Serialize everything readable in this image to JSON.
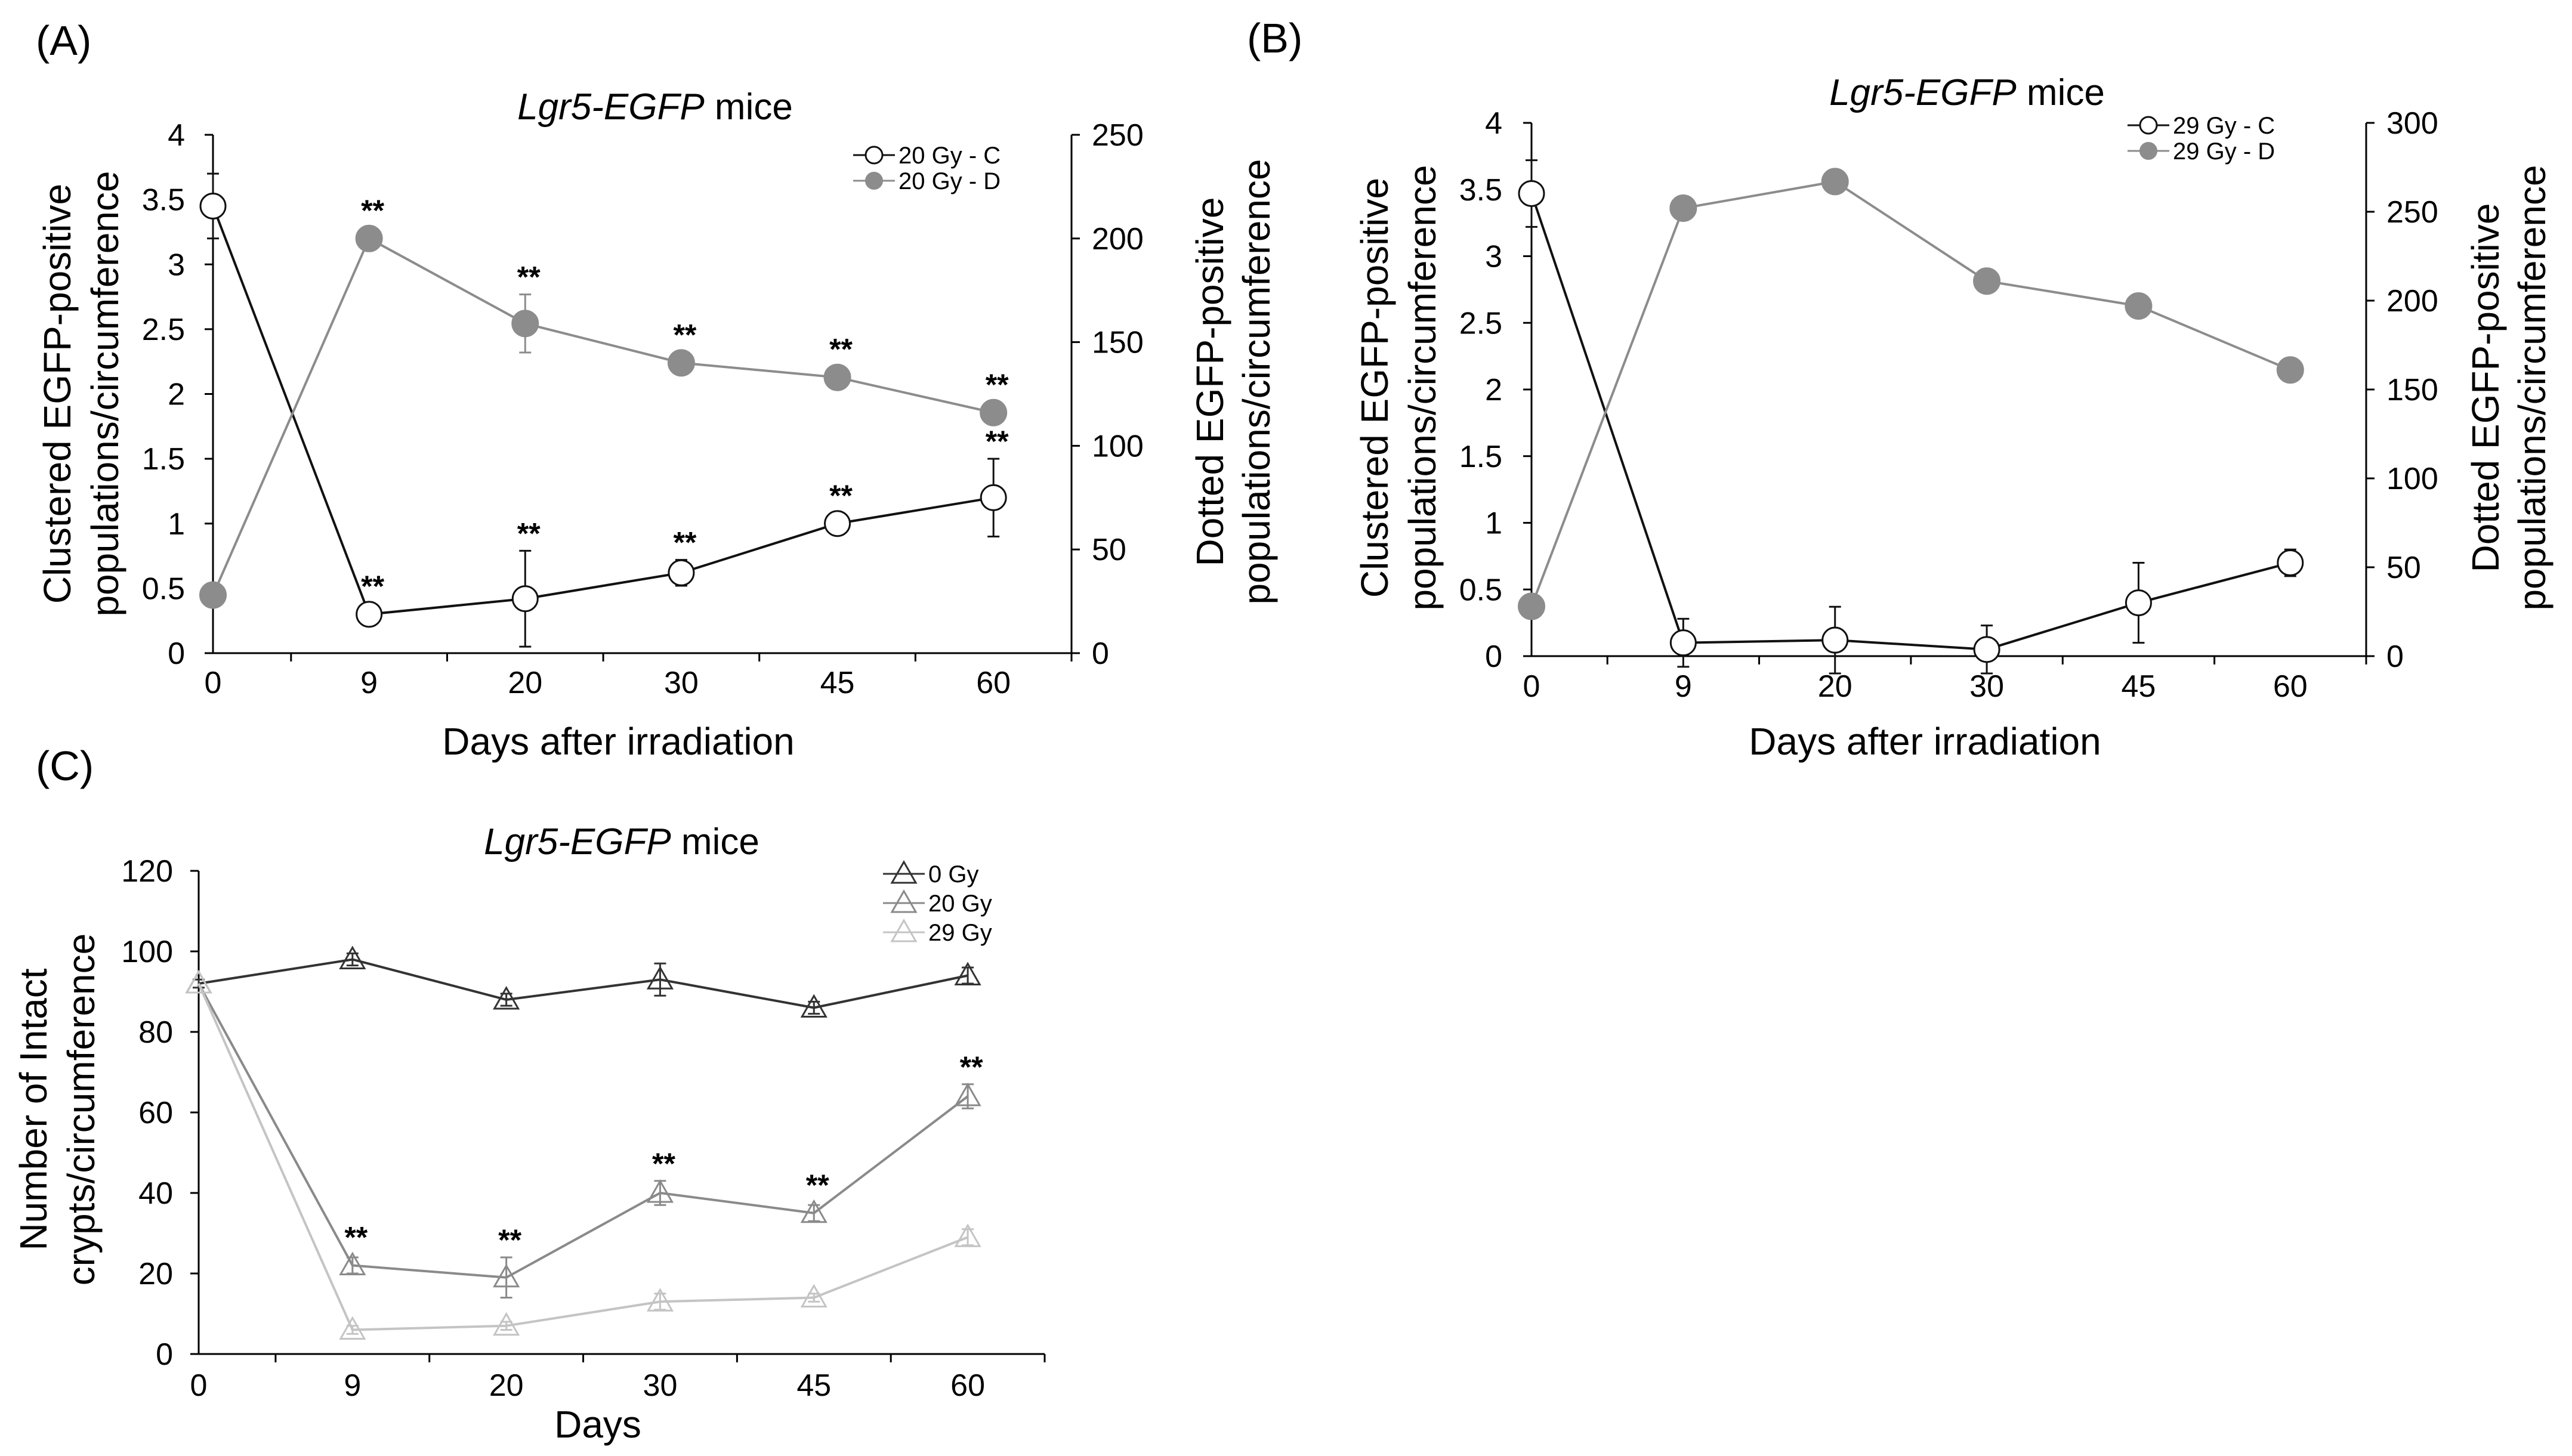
{
  "chart_data": [
    {
      "panel_label": "(A)",
      "type": "line",
      "title_italic": "Lgr5-EGFP",
      "title_rest": " mice",
      "x": [
        0,
        9,
        20,
        30,
        45,
        60
      ],
      "x_tick_labels": [
        "0",
        "9",
        "20",
        "30",
        "45",
        "60"
      ],
      "xlabel": "Days after irradiation",
      "ylabel_left": [
        "Clustered EGFP-positive",
        "populations/circumference"
      ],
      "ylabel_right": [
        "Dotted EGFP-positive",
        "populations/circumference"
      ],
      "ylim_left": [
        0,
        4
      ],
      "ylim_right": [
        0,
        250
      ],
      "y_ticks_left": [
        "0",
        "0.5",
        "1",
        "1.5",
        "2",
        "2.5",
        "3",
        "3.5",
        "4"
      ],
      "y_ticks_right": [
        "0",
        "50",
        "100",
        "150",
        "200",
        "250"
      ],
      "legend_position": "top-right",
      "series": [
        {
          "name": "20 Gy - C",
          "axis": "left",
          "marker": "open-circle",
          "color": "#111111",
          "values": [
            3.45,
            0.3,
            0.42,
            0.62,
            1.0,
            1.2
          ],
          "errors": [
            0.25,
            0.04,
            0.37,
            0.1,
            0.07,
            0.3
          ],
          "significance": [
            "",
            "**",
            "**",
            "**",
            "**",
            "**"
          ]
        },
        {
          "name": "20 Gy - D",
          "axis": "right",
          "marker": "filled-circle",
          "color": "#8c8c8c",
          "values": [
            28,
            200,
            159,
            140,
            133,
            116
          ],
          "errors": [
            0,
            3,
            14,
            3,
            3,
            3
          ],
          "significance": [
            "",
            "**",
            "**",
            "**",
            "**",
            "**"
          ]
        }
      ]
    },
    {
      "panel_label": "(B)",
      "type": "line",
      "title_italic": "Lgr5-EGFP",
      "title_rest": " mice",
      "x": [
        0,
        9,
        20,
        30,
        45,
        60
      ],
      "x_tick_labels": [
        "0",
        "9",
        "20",
        "30",
        "45",
        "60"
      ],
      "xlabel": "Days after irradiation",
      "ylabel_left": [
        "Clustered EGFP-positive",
        "populations/circumference"
      ],
      "ylabel_right": [
        "Dotted EGFP-positive",
        "populations/circumference"
      ],
      "ylim_left": [
        0,
        4
      ],
      "ylim_right": [
        0,
        300
      ],
      "y_ticks_left": [
        "0",
        "0.5",
        "1",
        "1.5",
        "2",
        "2.5",
        "3",
        "3.5",
        "4"
      ],
      "y_ticks_right": [
        "0",
        "50",
        "100",
        "150",
        "200",
        "250",
        "300"
      ],
      "legend_position": "top-right",
      "series": [
        {
          "name": "29 Gy - C",
          "axis": "left",
          "marker": "open-circle",
          "color": "#111111",
          "values": [
            3.47,
            0.1,
            0.12,
            0.05,
            0.4,
            0.7
          ],
          "errors": [
            0.25,
            0.18,
            0.25,
            0.18,
            0.3,
            0.1
          ],
          "significance": [
            "",
            "",
            "",
            "",
            "",
            ""
          ]
        },
        {
          "name": "29 Gy - D",
          "axis": "right",
          "marker": "filled-circle",
          "color": "#8c8c8c",
          "values": [
            28,
            252,
            267,
            211,
            197,
            161
          ],
          "errors": [
            0,
            2,
            2,
            2,
            2,
            2
          ],
          "significance": [
            "",
            "",
            "",
            "",
            "",
            ""
          ]
        }
      ]
    },
    {
      "panel_label": "(C)",
      "type": "line",
      "title_italic": "Lgr5-EGFP",
      "title_rest": " mice",
      "x": [
        0,
        9,
        20,
        30,
        45,
        60
      ],
      "x_tick_labels": [
        "0",
        "9",
        "20",
        "30",
        "45",
        "60"
      ],
      "xlabel": "Days",
      "ylabel_left": [
        "Number of Intact",
        "crypts/circumference"
      ],
      "ylim_left": [
        0,
        120
      ],
      "y_ticks_left": [
        "0",
        "20",
        "40",
        "60",
        "80",
        "100",
        "120"
      ],
      "legend_position": "top-right",
      "series": [
        {
          "name": "0 Gy",
          "axis": "left",
          "marker": "open-triangle",
          "color": "#333333",
          "values": [
            92,
            98,
            88,
            93,
            86,
            94
          ],
          "errors": [
            1,
            1.5,
            1.5,
            4,
            1.5,
            2
          ],
          "significance": [
            "",
            "",
            "",
            "",
            "",
            ""
          ]
        },
        {
          "name": "20 Gy",
          "axis": "left",
          "marker": "open-triangle",
          "color": "#8a8a8a",
          "values": [
            92,
            22,
            19,
            40,
            35,
            64
          ],
          "errors": [
            0,
            2,
            5,
            3,
            2,
            3
          ],
          "significance": [
            "",
            "**",
            "**",
            "**",
            "**",
            "**"
          ]
        },
        {
          "name": "29 Gy",
          "axis": "left",
          "marker": "open-triangle",
          "color": "#c4c4c4",
          "values": [
            92,
            6,
            7,
            13,
            14,
            29
          ],
          "errors": [
            0,
            1,
            1,
            2,
            1,
            2
          ],
          "significance": [
            "",
            "",
            "",
            "",
            "",
            ""
          ]
        }
      ]
    }
  ]
}
